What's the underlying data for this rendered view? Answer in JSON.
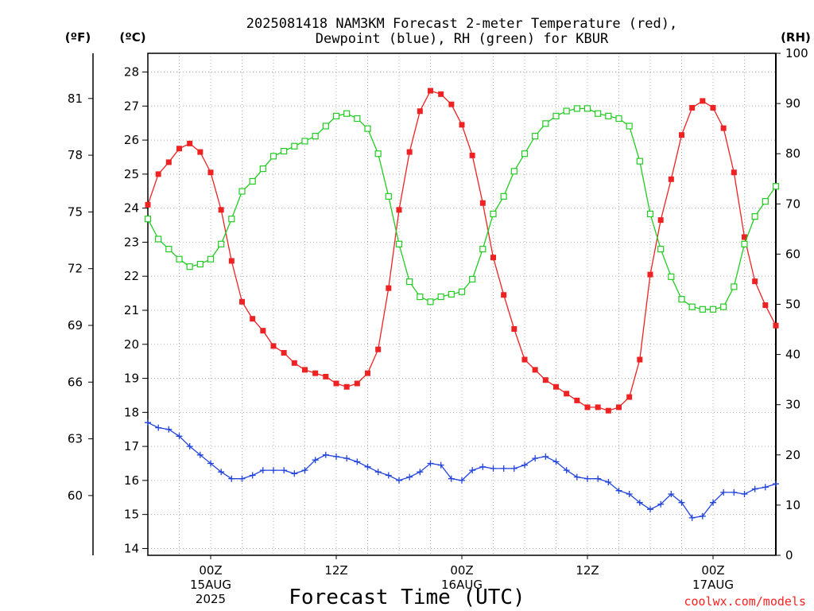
{
  "chart_data": {
    "type": "line",
    "title": "2025081418 NAM3KM Forecast 2-meter Temperature (red),",
    "subtitle": "Dewpoint (blue), RH (green) for KBUR",
    "xlabel": "Forecast Time (UTC)",
    "credit": "coolwx.com/models",
    "unit_labels": {
      "fahrenheit": "(ºF)",
      "celsius": "(ºC)",
      "rh": "(RH)"
    },
    "x_range_hours": [
      0,
      60
    ],
    "x_ticks": [
      {
        "hour": 6,
        "labels": [
          "00Z",
          "15AUG",
          "2025"
        ]
      },
      {
        "hour": 18,
        "labels": [
          "12Z"
        ]
      },
      {
        "hour": 30,
        "labels": [
          "00Z",
          "16AUG"
        ]
      },
      {
        "hour": 42,
        "labels": [
          "12Z"
        ]
      },
      {
        "hour": 54,
        "labels": [
          "00Z",
          "17AUG"
        ]
      }
    ],
    "y_celsius": {
      "range": [
        13.8,
        28.55
      ],
      "ticks": [
        "14",
        "15",
        "16",
        "17",
        "18",
        "19",
        "20",
        "21",
        "22",
        "23",
        "24",
        "25",
        "26",
        "27",
        "28"
      ]
    },
    "y_fahrenheit": {
      "ticks": [
        "60",
        "63",
        "66",
        "69",
        "72",
        "75",
        "78",
        "81"
      ]
    },
    "y_rh": {
      "range": [
        0,
        100
      ],
      "ticks": [
        "0",
        "10",
        "20",
        "30",
        "40",
        "50",
        "60",
        "70",
        "80",
        "90",
        "100"
      ]
    },
    "grid": true,
    "series": [
      {
        "name": "2-meter Temperature",
        "axis": "celsius",
        "color": "#ee2222",
        "marker": "filled-square",
        "hours": [
          0,
          1,
          2,
          3,
          4,
          5,
          6,
          7,
          8,
          9,
          10,
          11,
          12,
          13,
          14,
          15,
          16,
          17,
          18,
          19,
          20,
          21,
          22,
          23,
          24,
          25,
          26,
          27,
          28,
          29,
          30,
          31,
          32,
          33,
          34,
          35,
          36,
          37,
          38,
          39,
          40,
          41,
          42,
          43,
          44,
          45,
          46,
          47,
          48,
          49,
          50,
          51,
          52,
          53,
          54,
          55,
          56,
          57,
          58,
          59,
          60
        ],
        "values": [
          24.1,
          25.0,
          25.35,
          25.75,
          25.9,
          25.65,
          25.05,
          23.95,
          22.45,
          21.25,
          20.75,
          20.4,
          19.95,
          19.75,
          19.45,
          19.25,
          19.15,
          19.05,
          18.85,
          18.75,
          18.85,
          19.15,
          19.85,
          21.65,
          23.95,
          25.65,
          26.85,
          27.45,
          27.35,
          27.05,
          26.45,
          25.55,
          24.15,
          22.55,
          21.45,
          20.45,
          19.55,
          19.25,
          18.95,
          18.75,
          18.55,
          18.35,
          18.15,
          18.15,
          18.05,
          18.15,
          18.45,
          19.55,
          22.05,
          23.65,
          24.85,
          26.15,
          26.95,
          27.15,
          26.95,
          26.35,
          25.05,
          23.15,
          21.85,
          21.15,
          20.55
        ]
      },
      {
        "name": "Dewpoint",
        "axis": "celsius",
        "color": "#2244dd",
        "marker": "plus",
        "hours": [
          0,
          1,
          2,
          3,
          4,
          5,
          6,
          7,
          8,
          9,
          10,
          11,
          12,
          13,
          14,
          15,
          16,
          17,
          18,
          19,
          20,
          21,
          22,
          23,
          24,
          25,
          26,
          27,
          28,
          29,
          30,
          31,
          32,
          33,
          34,
          35,
          36,
          37,
          38,
          39,
          40,
          41,
          42,
          43,
          44,
          45,
          46,
          47,
          48,
          49,
          50,
          51,
          52,
          53,
          54,
          55,
          56,
          57,
          58,
          59,
          60
        ],
        "values": [
          17.7,
          17.55,
          17.5,
          17.3,
          17.0,
          16.75,
          16.5,
          16.25,
          16.05,
          16.05,
          16.15,
          16.3,
          16.3,
          16.3,
          16.2,
          16.3,
          16.6,
          16.75,
          16.7,
          16.65,
          16.55,
          16.4,
          16.25,
          16.15,
          16.0,
          16.1,
          16.25,
          16.5,
          16.45,
          16.05,
          16.0,
          16.3,
          16.4,
          16.35,
          16.35,
          16.35,
          16.45,
          16.65,
          16.7,
          16.55,
          16.3,
          16.1,
          16.05,
          16.05,
          15.95,
          15.7,
          15.6,
          15.35,
          15.15,
          15.3,
          15.6,
          15.35,
          14.9,
          14.95,
          15.35,
          15.65,
          15.65,
          15.6,
          15.75,
          15.8,
          15.9
        ]
      },
      {
        "name": "RH",
        "axis": "rh",
        "color": "#22cc22",
        "marker": "open-square",
        "hours": [
          0,
          1,
          2,
          3,
          4,
          5,
          6,
          7,
          8,
          9,
          10,
          11,
          12,
          13,
          14,
          15,
          16,
          17,
          18,
          19,
          20,
          21,
          22,
          23,
          24,
          25,
          26,
          27,
          28,
          29,
          30,
          31,
          32,
          33,
          34,
          35,
          36,
          37,
          38,
          39,
          40,
          41,
          42,
          43,
          44,
          45,
          46,
          47,
          48,
          49,
          50,
          51,
          52,
          53,
          54,
          55,
          56,
          57,
          58,
          59,
          60
        ],
        "values": [
          67,
          63,
          61,
          59,
          57.5,
          58,
          59,
          62,
          67,
          72.5,
          74.5,
          77,
          79.5,
          80.5,
          81.5,
          82.5,
          83.5,
          85.5,
          87.5,
          88,
          87,
          85,
          80,
          71.5,
          62,
          54.5,
          51.5,
          50.5,
          51.5,
          52,
          52.5,
          55,
          61,
          68,
          71.5,
          76.5,
          80,
          83.5,
          86,
          87.5,
          88.5,
          89,
          89,
          88,
          87.5,
          87,
          85.5,
          78.5,
          68,
          61,
          55.5,
          51,
          49.5,
          49,
          49,
          49.5,
          53.5,
          62,
          67.5,
          70.5,
          73.5
        ]
      }
    ]
  }
}
